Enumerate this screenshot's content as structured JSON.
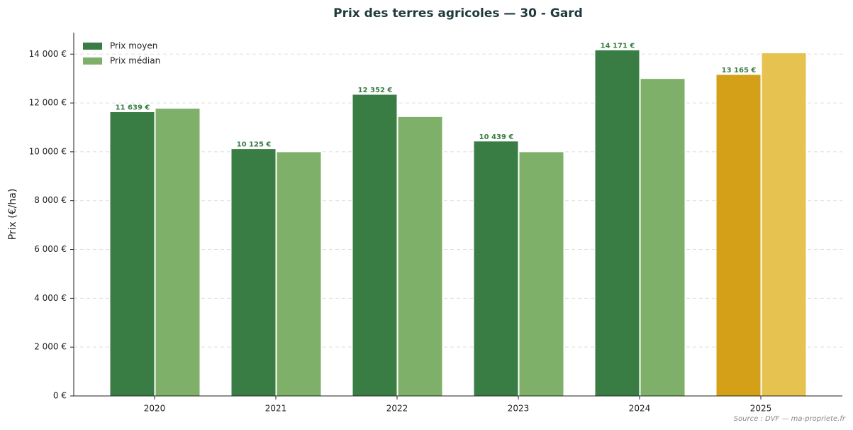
{
  "chart_data": {
    "type": "bar",
    "title": "Prix des terres agricoles — 30 - Gard",
    "ylabel": "Prix (€/ha)",
    "source": "Source : DVF — ma-propriete.fr",
    "categories": [
      "2020",
      "2021",
      "2022",
      "2023",
      "2024",
      "2025"
    ],
    "series": [
      {
        "name": "Prix moyen",
        "color": "#3a7d44",
        "colors": [
          "#3a7d44",
          "#3a7d44",
          "#3a7d44",
          "#3a7d44",
          "#3a7d44",
          "#d4a017"
        ],
        "values": [
          11639,
          10125,
          12352,
          10439,
          14171,
          13165
        ],
        "value_labels": [
          "11 639 €",
          "10 125 €",
          "12 352 €",
          "10 439 €",
          "14 171 €",
          "13 165 €"
        ]
      },
      {
        "name": "Prix médian",
        "color": "#7fb069",
        "colors": [
          "#7fb069",
          "#7fb069",
          "#7fb069",
          "#7fb069",
          "#7fb069",
          "#e6c350"
        ],
        "values": [
          11780,
          10000,
          11440,
          10000,
          13000,
          14050
        ]
      }
    ],
    "ylim": [
      0,
      14880
    ],
    "yticks": [
      {
        "value": 0,
        "label": "0 €"
      },
      {
        "value": 2000,
        "label": "2 000 €"
      },
      {
        "value": 4000,
        "label": "4 000 €"
      },
      {
        "value": 6000,
        "label": "6 000 €"
      },
      {
        "value": 8000,
        "label": "8 000 €"
      },
      {
        "value": 10000,
        "label": "10 000 €"
      },
      {
        "value": 12000,
        "label": "12 000 €"
      },
      {
        "value": 14000,
        "label": "14 000 €"
      }
    ],
    "grid": true,
    "legend": "upper left"
  }
}
